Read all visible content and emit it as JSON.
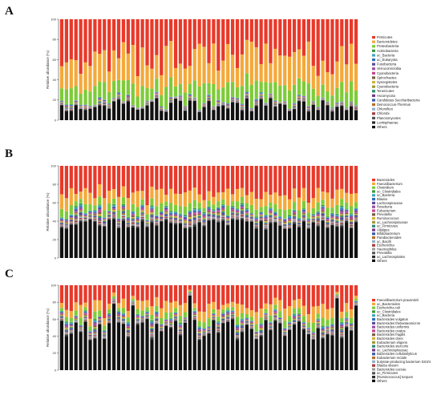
{
  "chart_data": [
    {
      "type": "bar",
      "stacked": true,
      "panel_label": "A",
      "ylabel": "Relative abundance (%)",
      "ylim": [
        0,
        100
      ],
      "yticks": [
        0,
        20,
        40,
        60,
        80,
        100
      ],
      "n_samples": 63,
      "legend_placement": "right",
      "legend": [
        {
          "name": "Firmicutes",
          "color": "#e8392a"
        },
        {
          "name": "Bacteroidetes",
          "color": "#f4a93a"
        },
        {
          "name": "Proteobacteria",
          "color": "#7ecb3a"
        },
        {
          "name": "Actinobacteria",
          "color": "#3a9a3e"
        },
        {
          "name": "uc_Bacteria",
          "color": "#3fa7b8"
        },
        {
          "name": "uc_Eukaryota",
          "color": "#2e6fb5"
        },
        {
          "name": "Fusobacteria",
          "color": "#5b4a9b"
        },
        {
          "name": "Verrucomicrobia",
          "color": "#9a4f9e"
        },
        {
          "name": "Cyanobacteria",
          "color": "#c2458c"
        },
        {
          "name": "Spirochaetes",
          "color": "#7b5a3c"
        },
        {
          "name": "Synergistetes",
          "color": "#d4b13a"
        },
        {
          "name": "Cyanobacteria",
          "color": "#9c9c38"
        },
        {
          "name": "Tenericutes",
          "color": "#2b8a6d"
        },
        {
          "name": "Ascomycota",
          "color": "#6f3a88"
        },
        {
          "name": "Candidatus Saccharibacteria",
          "color": "#3b5aa8"
        },
        {
          "name": "Deinococcus-Thermus",
          "color": "#b56f2f"
        },
        {
          "name": "Chloroflexi",
          "color": "#8fb0c8"
        },
        {
          "name": "Chlorobi",
          "color": "#a33d3d"
        },
        {
          "name": "Planctomycetes",
          "color": "#555555"
        },
        {
          "name": "Lentisphaerae",
          "color": "#2a2a2a"
        },
        {
          "name": "Others",
          "color": "#111111"
        }
      ]
    },
    {
      "type": "bar",
      "stacked": true,
      "panel_label": "B",
      "ylabel": "Relative abundance (%)",
      "ylim": [
        0,
        100
      ],
      "yticks": [
        0,
        20,
        40,
        60,
        80,
        100
      ],
      "n_samples": 63,
      "legend_placement": "right",
      "legend": [
        {
          "name": "Bacteroides",
          "color": "#e8392a"
        },
        {
          "name": "Faecalibacterium",
          "color": "#f4a93a"
        },
        {
          "name": "Clostridium",
          "color": "#7ecb3a"
        },
        {
          "name": "uc_Clostridiales",
          "color": "#3a9a3e"
        },
        {
          "name": "uc_Bacteria",
          "color": "#3fa7b8"
        },
        {
          "name": "Blautia",
          "color": "#2e6fb5"
        },
        {
          "name": "Lachnospiraceae",
          "color": "#5b4a9b"
        },
        {
          "name": "Roseburia",
          "color": "#9a4f9e"
        },
        {
          "name": "Eubacterium",
          "color": "#c2458c"
        },
        {
          "name": "Prevotella",
          "color": "#7b5a3c"
        },
        {
          "name": "Ruminococcus",
          "color": "#d4b13a"
        },
        {
          "name": "uc_Lachnospiraceae",
          "color": "#9c9c38"
        },
        {
          "name": "uc_Firmicutes",
          "color": "#2b8a6d"
        },
        {
          "name": "Alistipes",
          "color": "#6f3a88"
        },
        {
          "name": "Bifidobacterium",
          "color": "#3b5aa8"
        },
        {
          "name": "Parabacteroides",
          "color": "#b56f2f"
        },
        {
          "name": "uc_Bacilli",
          "color": "#8fb0c8"
        },
        {
          "name": "Escherichia",
          "color": "#a33d3d"
        },
        {
          "name": "Haemophilus",
          "color": "#9b9b9b"
        },
        {
          "name": "Prevotella",
          "color": "#555555"
        },
        {
          "name": "uc_Lachnospirales",
          "color": "#2a2a2a"
        },
        {
          "name": "Others",
          "color": "#111111"
        }
      ]
    },
    {
      "type": "bar",
      "stacked": true,
      "panel_label": "C",
      "ylabel": "Relative abundance (%)",
      "ylim": [
        0,
        100
      ],
      "yticks": [
        0,
        20,
        40,
        60,
        80,
        100
      ],
      "n_samples": 63,
      "legend_placement": "right",
      "legend": [
        {
          "name": "Faecalibacterium prausnitzii",
          "color": "#e8392a"
        },
        {
          "name": "uc_Bacteroides",
          "color": "#f4a93a"
        },
        {
          "name": "Escherichia coli",
          "color": "#7ecb3a"
        },
        {
          "name": "uc_Clostridiales",
          "color": "#3a9a3e"
        },
        {
          "name": "uc_Bacteria",
          "color": "#3fa7b8"
        },
        {
          "name": "Bacteroides vulgatus",
          "color": "#2e6fb5"
        },
        {
          "name": "Bacteroides thetaiotaomicron",
          "color": "#5b4a9b"
        },
        {
          "name": "Bacteroides uniformis",
          "color": "#9a4f9e"
        },
        {
          "name": "Bacteroides ovatus",
          "color": "#c2458c"
        },
        {
          "name": "Bacteroides fragilis",
          "color": "#7b5a3c"
        },
        {
          "name": "Bacteroides dorei",
          "color": "#d4b13a"
        },
        {
          "name": "Eubacterium eligens",
          "color": "#9c9c38"
        },
        {
          "name": "Bacteroides stercoris",
          "color": "#2b8a6d"
        },
        {
          "name": "uc_Lachnospiraceae",
          "color": "#6f3a88"
        },
        {
          "name": "Bacteroides cellulosilyticus",
          "color": "#3b5aa8"
        },
        {
          "name": "Eubacterium rectale",
          "color": "#b56f2f"
        },
        {
          "name": "butyrate-producing bacterium SS3/4",
          "color": "#8fb0c8"
        },
        {
          "name": "Blautia obeum",
          "color": "#a33d3d"
        },
        {
          "name": "Bacteroides caccae",
          "color": "#9b9b9b"
        },
        {
          "name": "uc_Firmicutes",
          "color": "#555555"
        },
        {
          "name": "[Ruminococcus] torques",
          "color": "#2a2a2a"
        },
        {
          "name": "Others",
          "color": "#111111"
        }
      ]
    }
  ]
}
